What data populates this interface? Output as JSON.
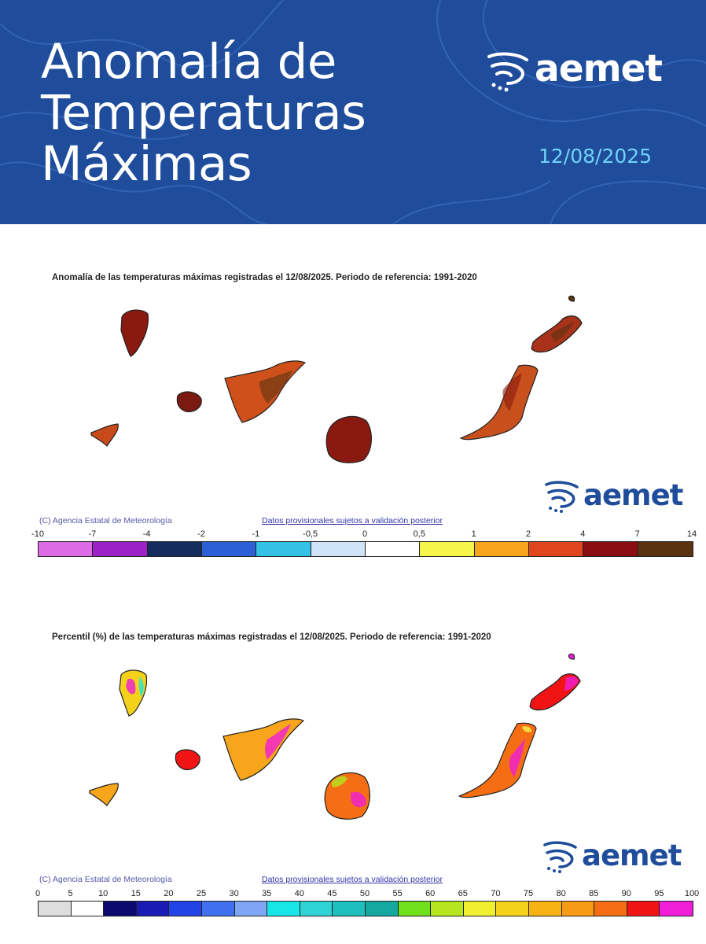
{
  "header": {
    "title_lines": [
      "Anomalía de",
      "Temperaturas",
      "Máximas"
    ],
    "brand": "aemet",
    "date": "12/08/2025",
    "colors": {
      "background": "#1f4d9c",
      "title": "#ffffff",
      "date": "#6fd3f7"
    }
  },
  "anomaly_map": {
    "title": "Anomalía de las temperaturas máximas registradas el 12/08/2025. Periodo de referencia: 1991-2020",
    "brand": "aemet",
    "credit": "(C) Agencia Estatal de Meteorología",
    "note": "Datos provisionales sujetos a validación posterior",
    "scale_ticks": [
      "-10",
      "-7",
      "-4",
      "-2",
      "-1",
      "-0,5",
      "0",
      "0,5",
      "1",
      "2",
      "4",
      "7",
      "14"
    ],
    "scale_colors": [
      "#dc6be6",
      "#9c22c7",
      "#142d5e",
      "#2b61d4",
      "#33c2e6",
      "#cfe4f7",
      "#ffffff",
      "#f5f54a",
      "#f7a51a",
      "#e0451e",
      "#8a0d12",
      "#5c3311"
    ],
    "island_fill": "#a83212"
  },
  "percentile_map": {
    "title": "Percentil (%) de las temperaturas máximas registradas el 12/08/2025. Periodo de referencia: 1991-2020",
    "brand": "aemet",
    "credit": "(C) Agencia Estatal de Meteorología",
    "note": "Datos provisionales sujetos a validación posterior",
    "scale_ticks": [
      "0",
      "5",
      "10",
      "15",
      "20",
      "25",
      "30",
      "35",
      "40",
      "45",
      "50",
      "55",
      "60",
      "65",
      "70",
      "75",
      "80",
      "85",
      "90",
      "95",
      "100"
    ],
    "scale_colors": [
      "#dedede",
      "#ffffff",
      "#0a0a6e",
      "#1a1ab4",
      "#2244e6",
      "#3f70f0",
      "#7fa6f5",
      "#17e6e6",
      "#2fd3d3",
      "#1ebfbf",
      "#14a8a0",
      "#6fe01a",
      "#b5e61e",
      "#f0f030",
      "#f5d21a",
      "#f7b214",
      "#f79a14",
      "#f56e14",
      "#f01414",
      "#f01ed7"
    ],
    "island_fill": "#f5641e"
  }
}
